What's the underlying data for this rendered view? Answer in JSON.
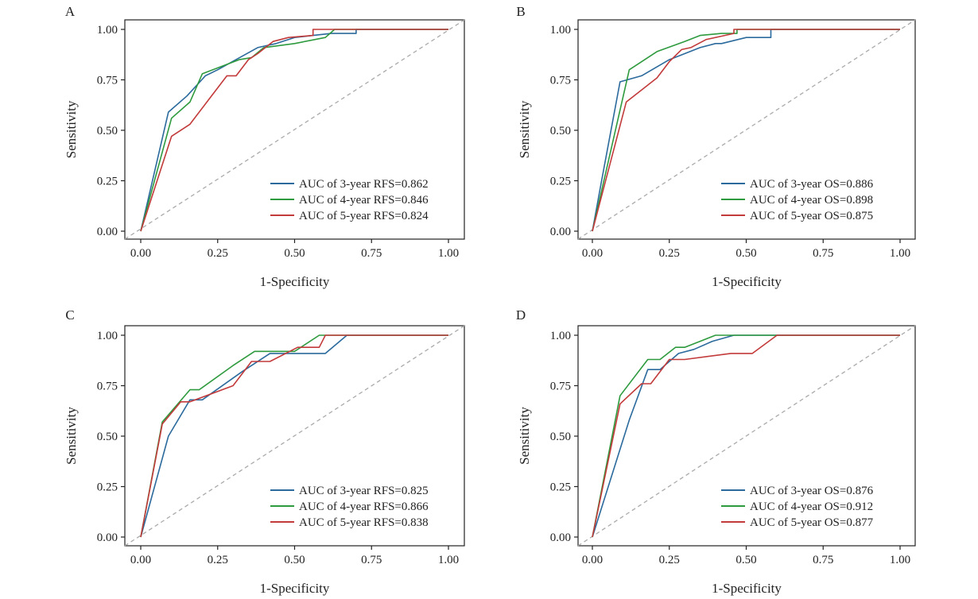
{
  "colors": {
    "blue": "#2b6a9c",
    "green": "#2e9a3e",
    "red": "#c23a3a",
    "diagonal": "#aaaaaa",
    "axis": "#222222"
  },
  "chart_data": [
    {
      "type": "line",
      "panel_label": "A",
      "xlabel": "1-Specificity",
      "ylabel": "Sensitivity",
      "xlim": [
        0,
        1
      ],
      "ylim": [
        0,
        1
      ],
      "xticks": [
        "0.00",
        "0.25",
        "0.50",
        "0.75",
        "1.00"
      ],
      "yticks": [
        "0.00",
        "0.25",
        "0.50",
        "0.75",
        "1.00"
      ],
      "grid": false,
      "legend_position": "bottom-right",
      "reference_line": "diagonal",
      "series": [
        {
          "name": "AUC of 3-year RFS=0.862",
          "color": "blue",
          "x": [
            0,
            0.09,
            0.15,
            0.21,
            0.25,
            0.38,
            0.44,
            0.5,
            0.56,
            0.62,
            0.7,
            0.7,
            1.0
          ],
          "y": [
            0,
            0.59,
            0.67,
            0.77,
            0.8,
            0.91,
            0.93,
            0.96,
            0.97,
            0.98,
            0.98,
            1.0,
            1.0
          ]
        },
        {
          "name": "AUC of 4-year RFS=0.846",
          "color": "green",
          "x": [
            0,
            0.1,
            0.16,
            0.2,
            0.32,
            0.36,
            0.4,
            0.5,
            0.6,
            0.63,
            1.0
          ],
          "y": [
            0,
            0.56,
            0.64,
            0.78,
            0.85,
            0.86,
            0.91,
            0.93,
            0.96,
            1.0,
            1.0
          ]
        },
        {
          "name": "AUC of 5-year RFS=0.824",
          "color": "red",
          "x": [
            0,
            0.1,
            0.16,
            0.22,
            0.28,
            0.31,
            0.35,
            0.38,
            0.43,
            0.48,
            0.56,
            0.56,
            1.0
          ],
          "y": [
            0,
            0.47,
            0.53,
            0.65,
            0.77,
            0.77,
            0.85,
            0.88,
            0.94,
            0.96,
            0.97,
            1.0,
            1.0
          ]
        }
      ]
    },
    {
      "type": "line",
      "panel_label": "B",
      "xlabel": "1-Specificity",
      "ylabel": "Sensitivity",
      "xlim": [
        0,
        1
      ],
      "ylim": [
        0,
        1
      ],
      "xticks": [
        "0.00",
        "0.25",
        "0.50",
        "0.75",
        "1.00"
      ],
      "yticks": [
        "0.00",
        "0.25",
        "0.50",
        "0.75",
        "1.00"
      ],
      "grid": false,
      "legend_position": "bottom-right",
      "reference_line": "diagonal",
      "series": [
        {
          "name": "AUC of 3-year OS=0.886",
          "color": "blue",
          "x": [
            0,
            0.03,
            0.09,
            0.16,
            0.25,
            0.35,
            0.4,
            0.42,
            0.5,
            0.58,
            0.58,
            1.0
          ],
          "y": [
            0,
            0.25,
            0.74,
            0.77,
            0.85,
            0.91,
            0.93,
            0.93,
            0.96,
            0.96,
            1.0,
            1.0
          ]
        },
        {
          "name": "AUC of 4-year OS=0.898",
          "color": "green",
          "x": [
            0,
            0.12,
            0.21,
            0.3,
            0.35,
            0.42,
            0.47,
            0.47,
            1.0
          ],
          "y": [
            0,
            0.8,
            0.89,
            0.94,
            0.97,
            0.98,
            0.98,
            1.0,
            1.0
          ]
        },
        {
          "name": "AUC of 5-year OS=0.875",
          "color": "red",
          "x": [
            0,
            0.11,
            0.16,
            0.21,
            0.25,
            0.29,
            0.32,
            0.37,
            0.46,
            0.46,
            1.0
          ],
          "y": [
            0,
            0.64,
            0.7,
            0.76,
            0.84,
            0.9,
            0.91,
            0.95,
            0.98,
            1.0,
            1.0
          ]
        }
      ]
    },
    {
      "type": "line",
      "panel_label": "C",
      "xlabel": "1-Specificity",
      "ylabel": "Sensitivity",
      "xlim": [
        0,
        1
      ],
      "ylim": [
        0,
        1
      ],
      "xticks": [
        "0.00",
        "0.25",
        "0.50",
        "0.75",
        "1.00"
      ],
      "yticks": [
        "0.00",
        "0.25",
        "0.50",
        "0.75",
        "1.00"
      ],
      "grid": false,
      "legend_position": "bottom-right",
      "reference_line": "diagonal",
      "series": [
        {
          "name": "AUC of 3-year RFS=0.825",
          "color": "blue",
          "x": [
            0,
            0.09,
            0.16,
            0.2,
            0.33,
            0.42,
            0.47,
            0.6,
            0.67,
            1.0
          ],
          "y": [
            0,
            0.5,
            0.68,
            0.68,
            0.82,
            0.91,
            0.91,
            0.91,
            1.0,
            1.0
          ]
        },
        {
          "name": "AUC of 4-year RFS=0.866",
          "color": "green",
          "x": [
            0,
            0.07,
            0.16,
            0.19,
            0.3,
            0.37,
            0.5,
            0.58,
            1.0
          ],
          "y": [
            0,
            0.57,
            0.73,
            0.73,
            0.85,
            0.92,
            0.92,
            1.0,
            1.0
          ]
        },
        {
          "name": "AUC of 5-year RFS=0.838",
          "color": "red",
          "x": [
            0,
            0.07,
            0.13,
            0.16,
            0.3,
            0.36,
            0.42,
            0.51,
            0.58,
            0.6,
            1.0
          ],
          "y": [
            0,
            0.56,
            0.67,
            0.67,
            0.75,
            0.87,
            0.87,
            0.94,
            0.94,
            1.0,
            1.0
          ]
        }
      ]
    },
    {
      "type": "line",
      "panel_label": "D",
      "xlabel": "1-Specificity",
      "ylabel": "Sensitivity",
      "xlim": [
        0,
        1
      ],
      "ylim": [
        0,
        1
      ],
      "xticks": [
        "0.00",
        "0.25",
        "0.50",
        "0.75",
        "1.00"
      ],
      "yticks": [
        "0.00",
        "0.25",
        "0.50",
        "0.75",
        "1.00"
      ],
      "grid": false,
      "legend_position": "bottom-right",
      "reference_line": "diagonal",
      "series": [
        {
          "name": "AUC of 3-year OS=0.876",
          "color": "blue",
          "x": [
            0,
            0.12,
            0.18,
            0.22,
            0.28,
            0.33,
            0.39,
            0.46,
            1.0
          ],
          "y": [
            0,
            0.58,
            0.83,
            0.83,
            0.91,
            0.93,
            0.97,
            1.0,
            1.0
          ]
        },
        {
          "name": "AUC of 4-year OS=0.912",
          "color": "green",
          "x": [
            0,
            0.09,
            0.18,
            0.22,
            0.27,
            0.3,
            0.4,
            1.0
          ],
          "y": [
            0,
            0.7,
            0.88,
            0.88,
            0.94,
            0.94,
            1.0,
            1.0
          ]
        },
        {
          "name": "AUC of 5-year OS=0.877",
          "color": "red",
          "x": [
            0,
            0.09,
            0.16,
            0.19,
            0.25,
            0.3,
            0.45,
            0.52,
            0.6,
            1.0
          ],
          "y": [
            0,
            0.66,
            0.76,
            0.76,
            0.88,
            0.88,
            0.91,
            0.91,
            1.0,
            1.0
          ]
        }
      ]
    }
  ]
}
